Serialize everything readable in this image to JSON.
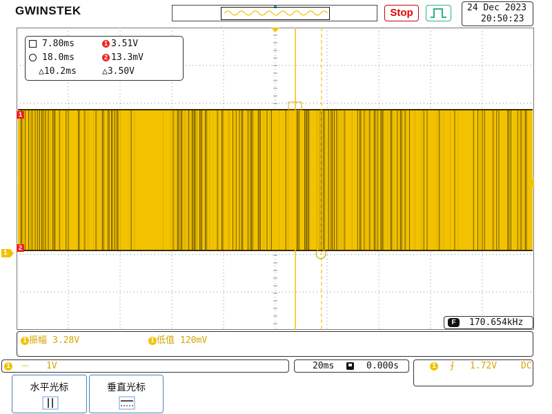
{
  "brand": "GWINSTEK",
  "run_state_label": "Stop",
  "trigger_mode_icon": "trigger-mode-icon",
  "datetime": {
    "date": "24 Dec 2023",
    "time": "20:50:23"
  },
  "cursors": {
    "h1": "7.80ms",
    "h2": "18.0ms",
    "h_delta": "10.2ms",
    "v1": "3.51V",
    "v2": "13.3mV",
    "v_delta": "3.50V",
    "cursor1_marker": "1",
    "cursor2_marker": "2",
    "delta_symbol": "△"
  },
  "channel_markers": {
    "ch1": "1",
    "ch2": "2",
    "ground": "1"
  },
  "frequency": {
    "marker": "F",
    "value": "170.654kHz"
  },
  "auto_measure": [
    {
      "marker": "1",
      "label": "振幅",
      "value": "3.28V"
    },
    {
      "marker": "1",
      "label": "低值",
      "value": "120mV"
    }
  ],
  "ch1_status": {
    "marker": "1",
    "coupling": "⎓",
    "scale": "1V"
  },
  "timebase": {
    "scale": "20ms",
    "position": "0.000s"
  },
  "trigger_status": {
    "marker": "1",
    "slope": "⨍",
    "level": "1.72V",
    "coupling": "DC"
  },
  "softkeys": [
    {
      "label": "水平光标"
    },
    {
      "label": "垂直光标"
    }
  ],
  "colors": {
    "trace": "#f2c200",
    "trace_dark": "#3a2e00",
    "accent_red": "#d00",
    "grid": "#8c8c8c"
  }
}
